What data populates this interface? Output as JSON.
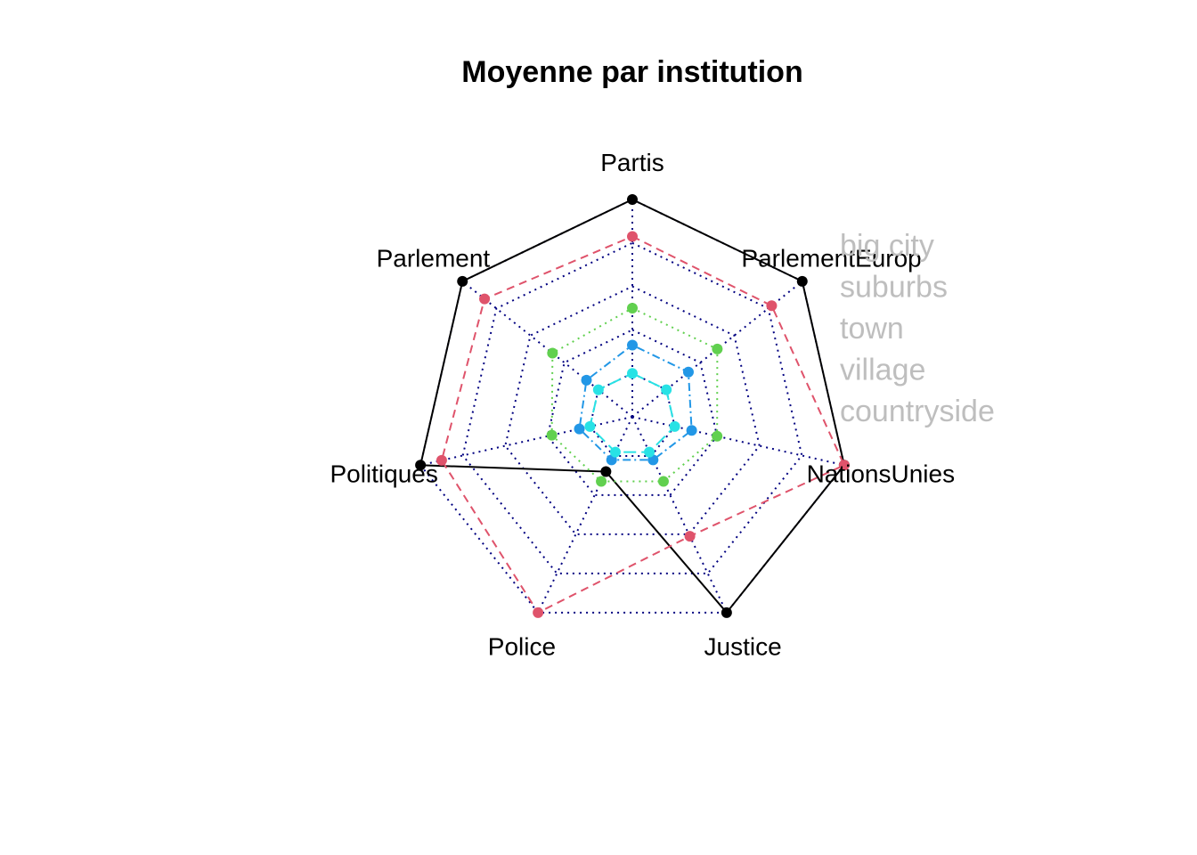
{
  "chart_data": {
    "type": "radar",
    "title": "Moyenne par institution",
    "axes": [
      "Partis",
      "ParlementEurop",
      "NationsUnies",
      "Justice",
      "Police",
      "Politiques",
      "Parlement"
    ],
    "rmin": 0,
    "rmax": 1,
    "grid_levels": 5,
    "grid": true,
    "legend_position": "top-right",
    "series": [
      {
        "name": "big city",
        "color": "#000000",
        "dash": "solid",
        "values": [
          1.0,
          1.0,
          1.0,
          1.0,
          0.28,
          1.0,
          1.0
        ]
      },
      {
        "name": "suburbs",
        "color": "#DF536B",
        "dash": "dashed",
        "values": [
          0.83,
          0.82,
          1.0,
          0.61,
          1.0,
          0.9,
          0.87
        ]
      },
      {
        "name": "town",
        "color": "#61D04F",
        "dash": "dotted",
        "values": [
          0.5,
          0.5,
          0.4,
          0.33,
          0.33,
          0.38,
          0.47
        ]
      },
      {
        "name": "village",
        "color": "#2297E6",
        "dash": "dotdash",
        "values": [
          0.33,
          0.33,
          0.28,
          0.22,
          0.22,
          0.25,
          0.27
        ]
      },
      {
        "name": "countryside",
        "color": "#28E2E5",
        "dash": "longdash",
        "values": [
          0.2,
          0.2,
          0.2,
          0.18,
          0.18,
          0.2,
          0.2
        ]
      }
    ]
  }
}
